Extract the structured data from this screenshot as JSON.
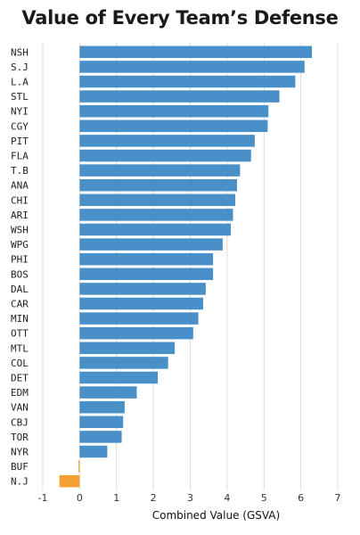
{
  "chart_data": {
    "type": "bar",
    "orientation": "horizontal",
    "title": "Value of Every Team’s Defense",
    "xlabel": "Combined Value (GSVA)",
    "ylabel": "",
    "xlim": [
      -1,
      7
    ],
    "xticks": [
      -1,
      0,
      1,
      2,
      3,
      4,
      5,
      6,
      7
    ],
    "grid": true,
    "colors": {
      "positive": "#4a90c8",
      "negative": "#f5a032"
    },
    "categories": [
      "NSH",
      "S.J",
      "L.A",
      "STL",
      "NYI",
      "CGY",
      "PIT",
      "FLA",
      "T.B",
      "ANA",
      "CHI",
      "ARI",
      "WSH",
      "WPG",
      "PHI",
      "BOS",
      "DAL",
      "CAR",
      "MIN",
      "OTT",
      "MTL",
      "COL",
      "DET",
      "EDM",
      "VAN",
      "CBJ",
      "TOR",
      "NYR",
      "BUF",
      "N.J"
    ],
    "values": [
      6.3,
      6.1,
      5.85,
      5.42,
      5.12,
      5.1,
      4.75,
      4.65,
      4.35,
      4.27,
      4.22,
      4.16,
      4.1,
      3.88,
      3.62,
      3.62,
      3.42,
      3.35,
      3.22,
      3.08,
      2.58,
      2.4,
      2.12,
      1.55,
      1.22,
      1.18,
      1.14,
      0.75,
      -0.03,
      -0.55
    ]
  }
}
